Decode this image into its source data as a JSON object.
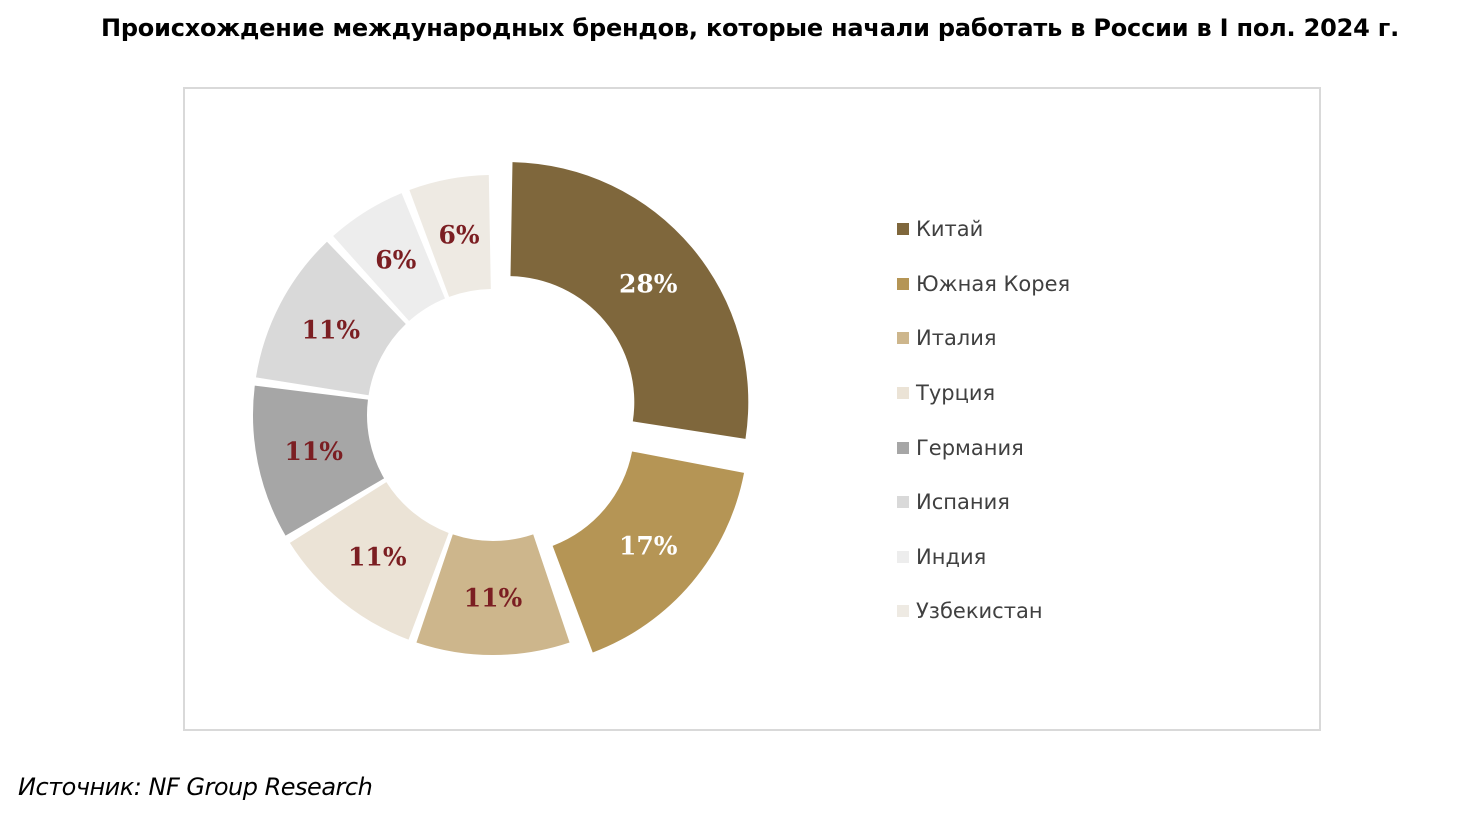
{
  "title": "Происхождение международных брендов, которые начали работать в России в I пол. 2024 г.",
  "source": "Источник: NF Group Research",
  "chart_data": {
    "type": "pie",
    "subtype": "donut",
    "title": "Происхождение международных брендов, которые начали работать в России в I пол. 2024 г.",
    "legend_position": "right",
    "unit": "%",
    "categories": [
      "Китай",
      "Южная Корея",
      "Италия",
      "Турция",
      "Германия",
      "Испания",
      "Индия",
      "Узбекистан"
    ],
    "values": [
      28,
      17,
      11,
      11,
      11,
      11,
      6,
      6
    ],
    "labels": [
      "28%",
      "17%",
      "11%",
      "11%",
      "11%",
      "11%",
      "6%",
      "6%"
    ],
    "colors": [
      "#7f673c",
      "#b59555",
      "#cdb68c",
      "#ebe3d6",
      "#a6a6a6",
      "#d9d9d9",
      "#ededed",
      "#eeeae3"
    ],
    "label_colors": [
      "#ffffff",
      "#ffffff",
      "#7b1e22",
      "#7b1e22",
      "#7b1e22",
      "#7b1e22",
      "#7b1e22",
      "#7b1e22"
    ],
    "exploded": [
      "Китай",
      "Южная Корея"
    ]
  }
}
